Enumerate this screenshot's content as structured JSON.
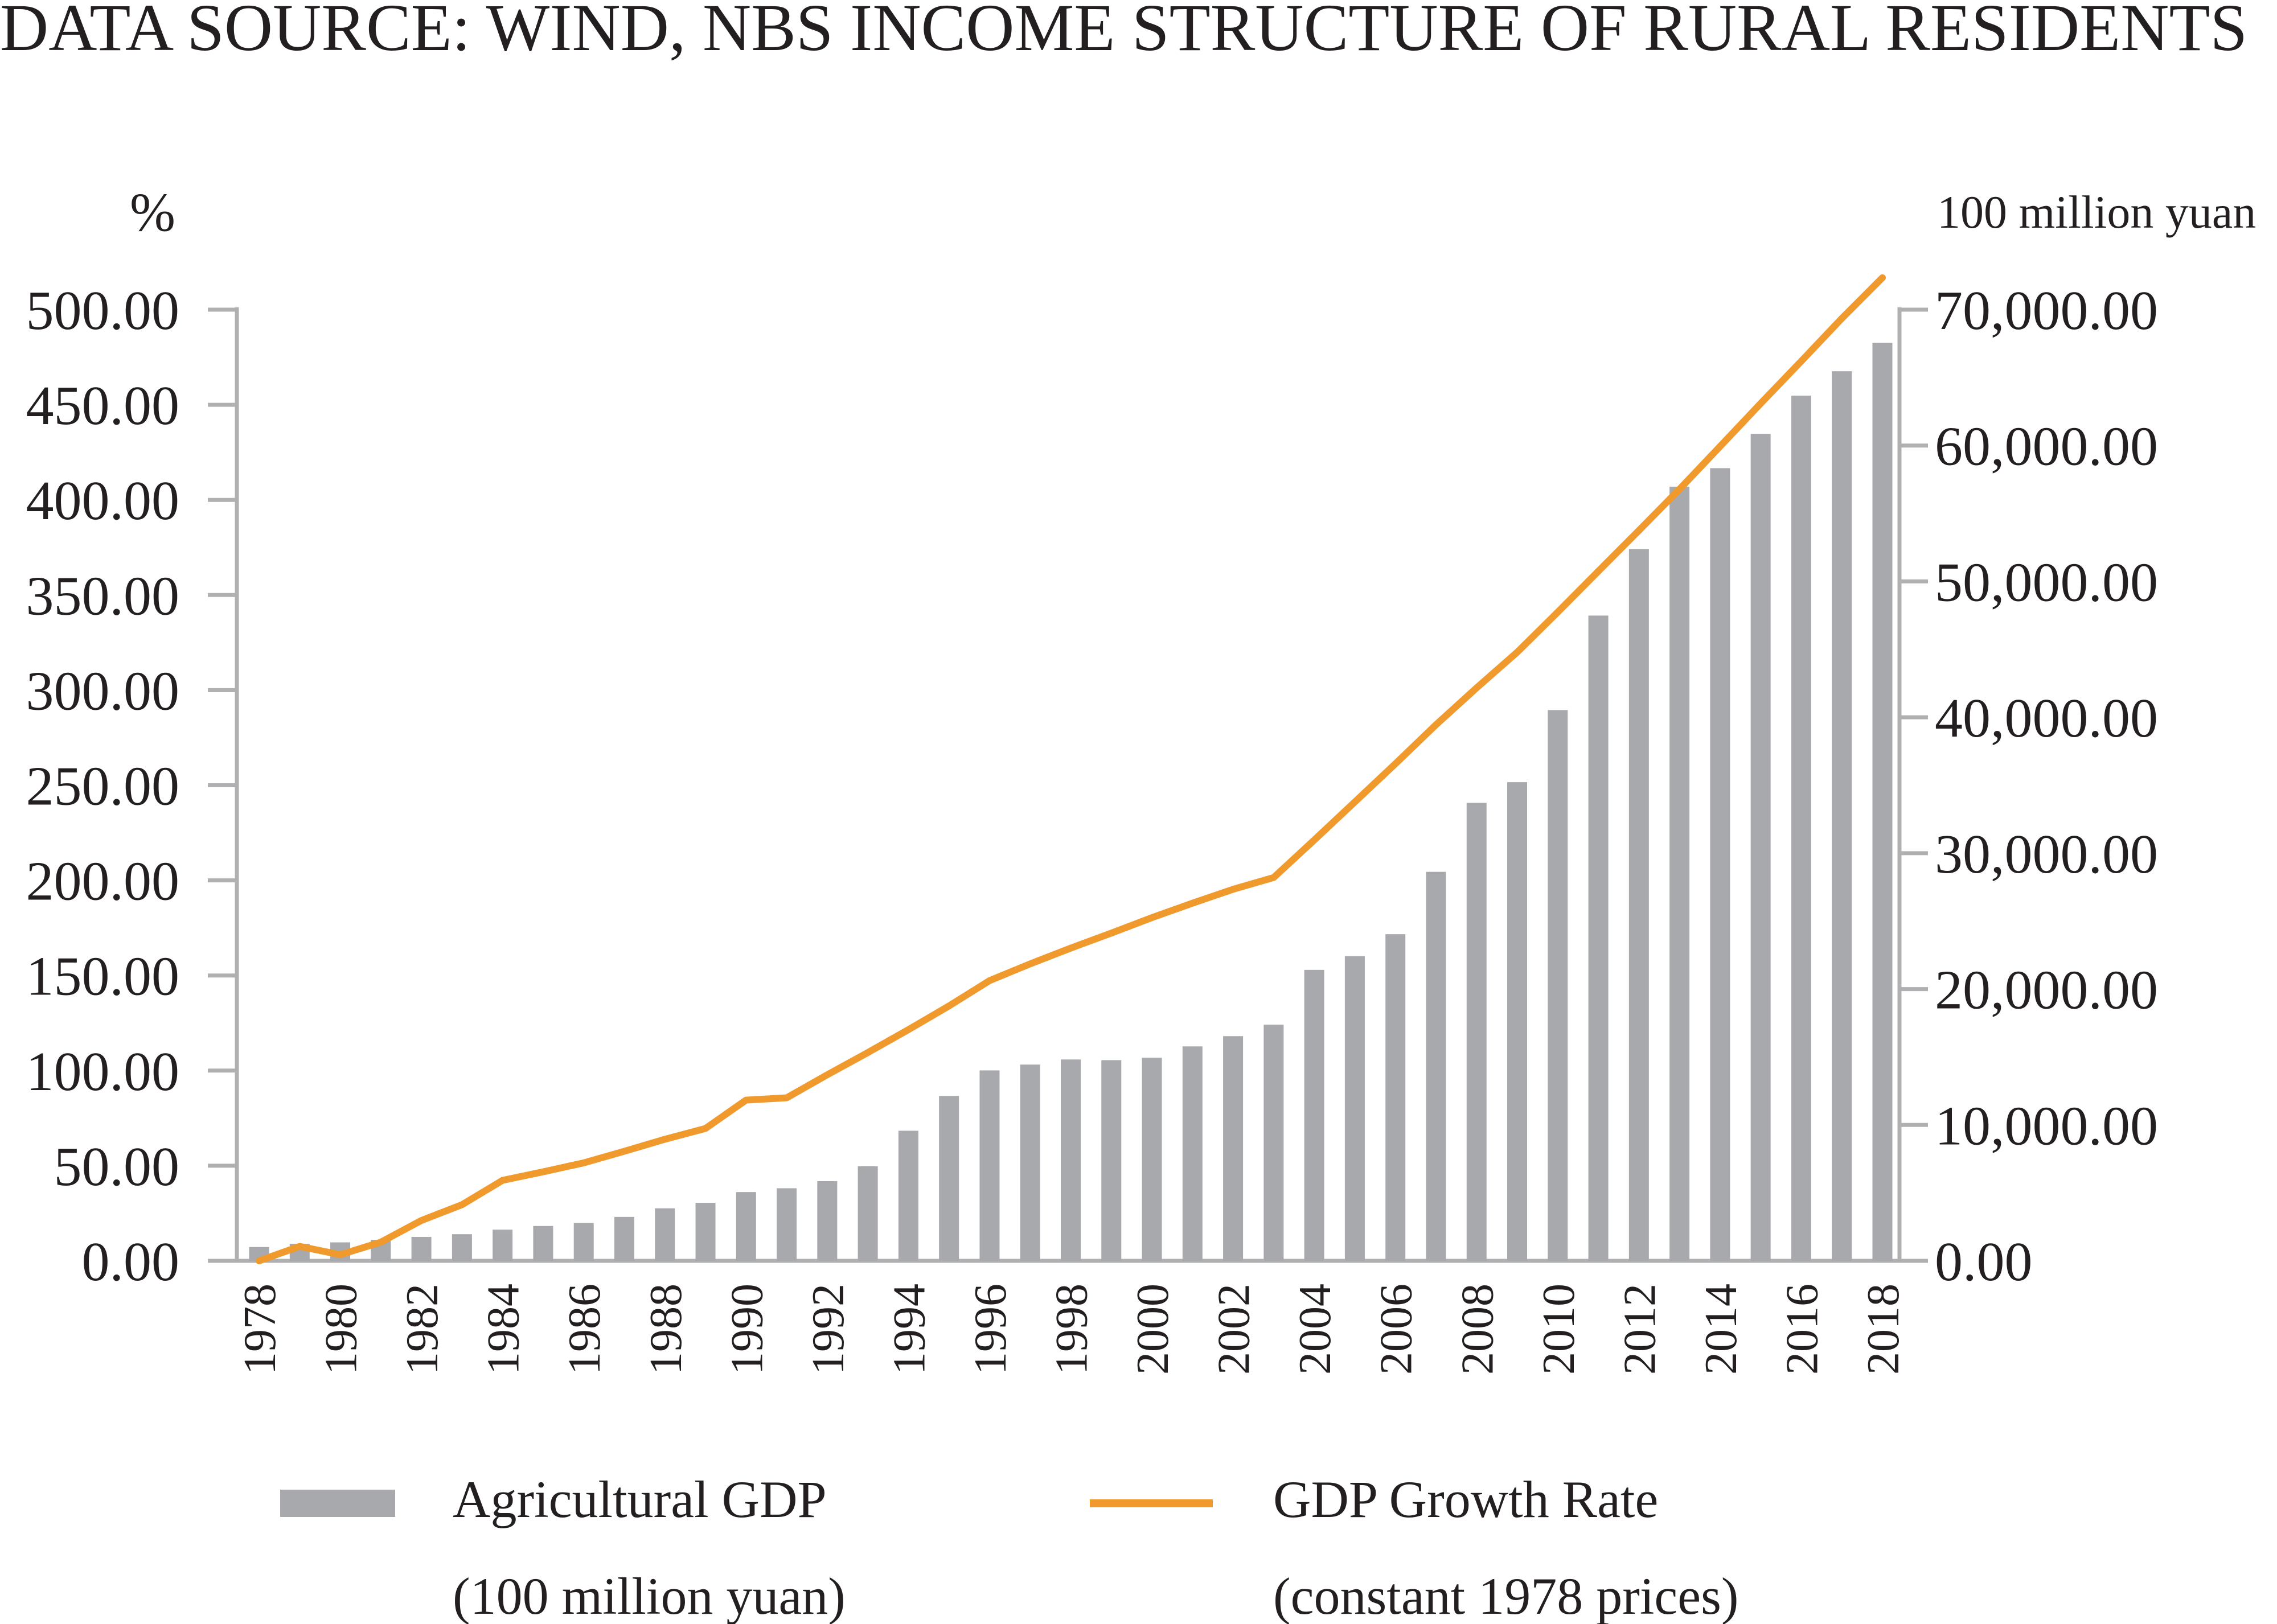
{
  "chart_data": {
    "type": "bar+line",
    "title": "DATA SOURCE: WIND, NBS INCOME STRUCTURE OF RURAL RESIDENTS",
    "left_axis": {
      "unit": "%",
      "ylim": [
        0,
        500
      ],
      "ticks": [
        "0.00",
        "50.00",
        "100.00",
        "150.00",
        "200.00",
        "250.00",
        "300.00",
        "350.00",
        "400.00",
        "450.00",
        "500.00"
      ]
    },
    "right_axis": {
      "unit": "100 million yuan",
      "ylim": [
        0,
        70000
      ],
      "ticks": [
        "0.00",
        "10,000.00",
        "20,000.00",
        "30,000.00",
        "40,000.00",
        "50,000.00",
        "60,000.00",
        "70,000.00"
      ]
    },
    "x_tick_labels": [
      "1978",
      "1980",
      "1982",
      "1984",
      "1986",
      "1988",
      "1990",
      "1992",
      "1994",
      "1996",
      "1998",
      "2000",
      "2002",
      "2004",
      "2006",
      "2008",
      "2010",
      "2012",
      "2014",
      "2016",
      "2018"
    ],
    "categories": [
      "1978",
      "1979",
      "1980",
      "1981",
      "1982",
      "1983",
      "1984",
      "1985",
      "1986",
      "1987",
      "1988",
      "1989",
      "1990",
      "1991",
      "1992",
      "1993",
      "1994",
      "1995",
      "1996",
      "1997",
      "1998",
      "1999",
      "2000",
      "2001",
      "2002",
      "2003",
      "2004",
      "2005",
      "2006",
      "2007",
      "2008",
      "2009",
      "2010",
      "2011",
      "2012",
      "2013",
      "2014",
      "2015",
      "2016",
      "2017",
      "2018"
    ],
    "series": [
      {
        "name": "Agricultural GDP",
        "name_line2": "(100 million yuan)",
        "type": "bar",
        "axis": "right",
        "color": "#a7a9ac",
        "values": [
          1018,
          1259,
          1359,
          1545,
          1762,
          1960,
          2295,
          2564,
          2789,
          3233,
          3865,
          4266,
          5062,
          5342,
          5866,
          6964,
          9573,
          12136,
          14015,
          14442,
          14818,
          14770,
          14945,
          15781,
          16537,
          17382,
          21413,
          22420,
          24040,
          28627,
          33702,
          35226,
          40534,
          47487,
          52374,
          56973,
          58337,
          60863,
          63671,
          65468,
          67558
        ]
      },
      {
        "name": "GDP Growth Rate",
        "name_line2": "(constant 1978 prices)",
        "type": "line",
        "axis": "left",
        "color": "#f09a2d",
        "values": [
          0,
          7.6,
          3.2,
          9.8,
          21.2,
          29.5,
          42.3,
          46.8,
          51.5,
          57.6,
          63.9,
          69.6,
          84.5,
          85.7,
          97.8,
          109.5,
          121.5,
          134.0,
          147.3,
          156.1,
          164.4,
          172.3,
          180.4,
          188.0,
          195.3,
          201.5,
          221.2,
          241.2,
          261.3,
          281.8,
          301.2,
          319.9,
          341.0,
          362.5,
          383.9,
          405.6,
          428.1,
          450.7,
          472.9,
          495.4,
          516.8
        ]
      }
    ]
  }
}
